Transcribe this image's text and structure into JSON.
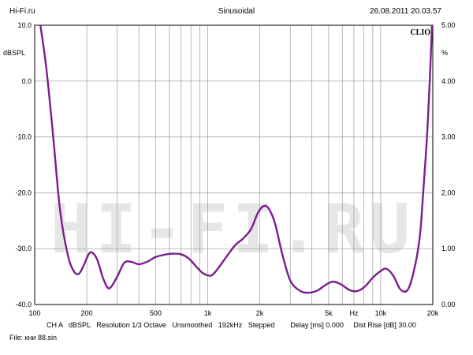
{
  "header": {
    "left": "Hi-Fi.ru",
    "center": "Sinusoidal",
    "right": "26.08.2011 20.03.57"
  },
  "brand": "CLIO",
  "watermark": "HI-FI.RU",
  "footer": {
    "line1": "CH A   dBSPL   Resolution 1/3 Octave   Unsmoothed   192kHz   Stepped        Delay [ms] 0.000     Dist Rise [dB] 30.00",
    "line2": "File: кни 88.sin"
  },
  "colors": {
    "curve": "#7a1e8c",
    "grid": "#9a9a9a",
    "frame": "#000000"
  },
  "chart_data": {
    "type": "line",
    "x_scale": "log",
    "xlim": [
      100,
      20000
    ],
    "ylim_left": [
      -40,
      10
    ],
    "ylim_right": [
      0,
      5
    ],
    "ylabel_left": "dBSPL",
    "ylabel_right": "%",
    "x_tick_labels": [
      "100",
      "200",
      "500",
      "1k",
      "2k",
      "5k",
      "Hz",
      "10k",
      "20k"
    ],
    "y_left_tick_labels": [
      "10.0",
      "0.0",
      "-10.0",
      "-20.0",
      "-30.0",
      "-40.0"
    ],
    "y_right_tick_labels": [
      "5.00",
      "4.00",
      "3.00",
      "2.00",
      "1.00",
      "0.00"
    ],
    "series": [
      {
        "x": [
          108,
          117,
          128,
          140,
          155,
          168,
          180,
          192,
          205,
          215,
          230,
          250,
          270,
          300,
          330,
          365,
          400,
          450,
          500,
          560,
          620,
          700,
          780,
          870,
          950,
          1050,
          1150,
          1300,
          1450,
          1600,
          1780,
          1950,
          2100,
          2250,
          2450,
          2700,
          3000,
          3400,
          3800,
          4300,
          4800,
          5300,
          5900,
          6600,
          7300,
          8100,
          9000,
          10000,
          10800,
          11800,
          13000,
          14300,
          15500,
          16800,
          17600,
          18500,
          19200,
          19800
        ],
        "y": [
          10,
          2,
          -10,
          -23,
          -31,
          -34,
          -34.5,
          -33,
          -31,
          -30.7,
          -32,
          -35.5,
          -37.1,
          -35,
          -32.5,
          -32.4,
          -32.8,
          -32.3,
          -31.5,
          -31.1,
          -30.9,
          -31,
          -31.8,
          -33.4,
          -34.5,
          -34.8,
          -33.5,
          -31.2,
          -29.3,
          -28.2,
          -26.5,
          -23.6,
          -22.4,
          -22.8,
          -25.5,
          -31,
          -35.7,
          -37.5,
          -37.9,
          -37.5,
          -36.5,
          -35.9,
          -36.4,
          -37.4,
          -37.6,
          -36.8,
          -35.2,
          -34,
          -33.6,
          -34.8,
          -37.3,
          -37.4,
          -34.2,
          -28,
          -20,
          -10,
          0,
          10
        ]
      }
    ]
  }
}
